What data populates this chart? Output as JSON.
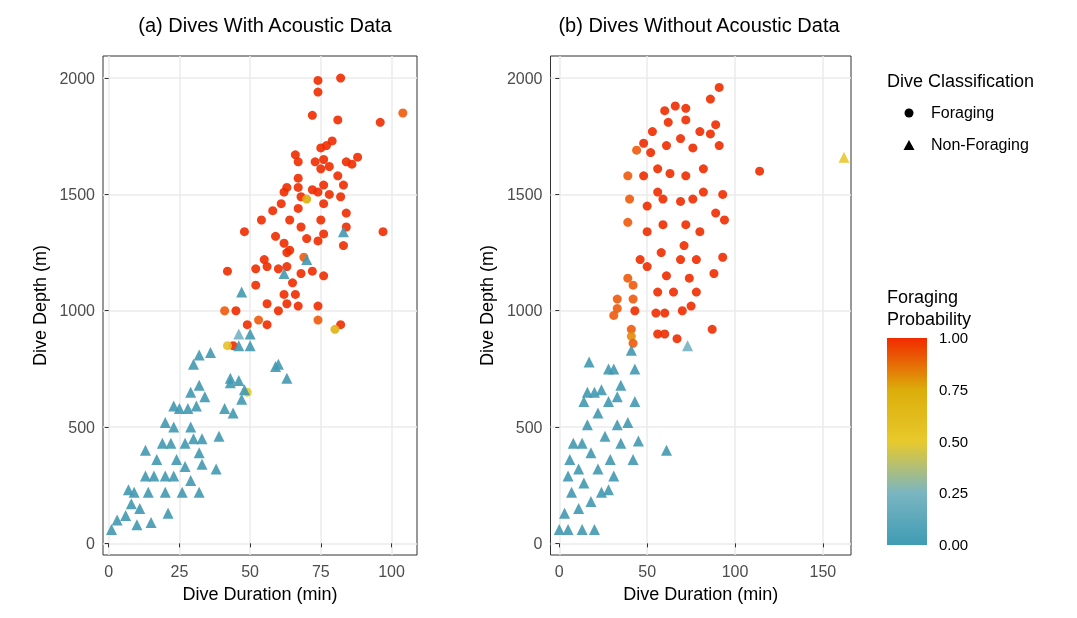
{
  "chart_data": [
    {
      "type": "scatter",
      "title": "(a) Dives With Acoustic Data",
      "xlabel": "Dive Duration (min)",
      "ylabel": "Dive Depth (m)",
      "xlim": [
        -2,
        109
      ],
      "ylim": [
        -50,
        2095
      ],
      "xticks": [
        0,
        25,
        50,
        75,
        100
      ],
      "yticks": [
        0,
        500,
        1000,
        1500,
        2000
      ],
      "grid": true,
      "series": [
        {
          "marker": "circle",
          "x": [
            74,
            82,
            74,
            72,
            81,
            96,
            104,
            79,
            75,
            77,
            88,
            66,
            67,
            73,
            76,
            84,
            86,
            75,
            78,
            81,
            67,
            63,
            67,
            72,
            76,
            83,
            82,
            62,
            68,
            74,
            78,
            61,
            76,
            58,
            67,
            64,
            54,
            68,
            75,
            84,
            84,
            48,
            97,
            76,
            70,
            59,
            62,
            74,
            83,
            64,
            63,
            55,
            69,
            52,
            56,
            42,
            60,
            63,
            72,
            76,
            68,
            52,
            65,
            66,
            62,
            56,
            63,
            67,
            74,
            60,
            41,
            45,
            53,
            49,
            56,
            74,
            82,
            80,
            44,
            42,
            49,
            70
          ],
          "values": [
            1990,
            2000,
            1940,
            1840,
            1820,
            1810,
            1850,
            1730,
            1700,
            1710,
            1660,
            1670,
            1640,
            1640,
            1650,
            1640,
            1630,
            1610,
            1620,
            1580,
            1570,
            1530,
            1530,
            1520,
            1540,
            1540,
            1490,
            1510,
            1490,
            1510,
            1500,
            1460,
            1460,
            1430,
            1440,
            1390,
            1390,
            1360,
            1390,
            1420,
            1360,
            1340,
            1340,
            1330,
            1310,
            1320,
            1290,
            1300,
            1280,
            1260,
            1250,
            1220,
            1230,
            1180,
            1190,
            1170,
            1180,
            1190,
            1170,
            1150,
            1160,
            1110,
            1120,
            1070,
            1070,
            1030,
            1030,
            1020,
            1020,
            1000,
            1000,
            1000,
            960,
            940,
            940,
            960,
            940,
            920,
            850,
            850,
            650,
            1480
          ],
          "colors": [
            "#f02c00",
            "#f02c00",
            "#f02c00",
            "#f02c00",
            "#f02c00",
            "#f02c00",
            "#ef5a0c",
            "#f02c00",
            "#f02c00",
            "#f02c00",
            "#f02c00",
            "#f02c00",
            "#f02c00",
            "#f02c00",
            "#f02c00",
            "#f02c00",
            "#f02c00",
            "#f02c00",
            "#f02c00",
            "#f02c00",
            "#f02c00",
            "#f02c00",
            "#f02c00",
            "#f02c00",
            "#f02c00",
            "#f02c00",
            "#f02c00",
            "#f02c00",
            "#f02c00",
            "#f02c00",
            "#f02c00",
            "#f02c00",
            "#f02c00",
            "#f02c00",
            "#f02c00",
            "#f02c00",
            "#f02c00",
            "#f02c00",
            "#f02c00",
            "#f02c00",
            "#f02c00",
            "#f02c00",
            "#f02c00",
            "#f02c00",
            "#f02c00",
            "#f02c00",
            "#f02c00",
            "#f02c00",
            "#f02c00",
            "#f02c00",
            "#f02c00",
            "#f02c00",
            "#ef5a0c",
            "#f02c00",
            "#f02c00",
            "#f02c00",
            "#f02c00",
            "#f02c00",
            "#f02c00",
            "#f02c00",
            "#f02c00",
            "#f02c00",
            "#f02c00",
            "#f02c00",
            "#f02c00",
            "#f02c00",
            "#f02c00",
            "#f02c00",
            "#f02c00",
            "#f02c00",
            "#ef5a0c",
            "#f02c00",
            "#ef5a0c",
            "#f02c00",
            "#f02c00",
            "#ef5a0c",
            "#f02c00",
            "#e0b214",
            "#f02c00",
            "#e6c22a",
            "#e8c92c",
            "#dcae0a"
          ]
        },
        {
          "marker": "triangle",
          "x": [
            83,
            70,
            62,
            47,
            46,
            50,
            46,
            50,
            36,
            32,
            30,
            60,
            59,
            63,
            43,
            46,
            43,
            48,
            47,
            41,
            44,
            32,
            29,
            34,
            31,
            25,
            39,
            33,
            33,
            38,
            32,
            29,
            20,
            13,
            7,
            3,
            1,
            14,
            20,
            24,
            27,
            22,
            17,
            11,
            8,
            10,
            15,
            21,
            26,
            29,
            32,
            28,
            23,
            19,
            16,
            9,
            6,
            13,
            20,
            23,
            27,
            30,
            23
          ],
          "values": [
            1340,
            1220,
            1160,
            1080,
            900,
            900,
            850,
            850,
            820,
            810,
            770,
            770,
            760,
            710,
            710,
            700,
            690,
            660,
            620,
            580,
            560,
            680,
            650,
            630,
            590,
            580,
            460,
            450,
            340,
            320,
            220,
            500,
            520,
            400,
            230,
            100,
            60,
            220,
            290,
            360,
            430,
            430,
            360,
            150,
            170,
            80,
            90,
            130,
            220,
            270,
            390,
            580,
            500,
            430,
            290,
            220,
            120,
            290,
            220,
            290,
            330,
            450,
            590
          ],
          "colors": [
            "#4199b1",
            "#4199b1",
            "#4199b1",
            "#4199b1",
            "#74b3c3",
            "#4199b1",
            "#4199b1",
            "#4199b1",
            "#4199b1",
            "#4199b1",
            "#4199b1",
            "#4199b1",
            "#4199b1",
            "#4199b1",
            "#4199b1",
            "#4199b1",
            "#4199b1",
            "#4199b1",
            "#4199b1",
            "#4199b1",
            "#4199b1",
            "#4199b1",
            "#4199b1",
            "#4199b1",
            "#4199b1",
            "#4199b1",
            "#4199b1",
            "#4199b1",
            "#4199b1",
            "#4199b1",
            "#4199b1",
            "#4199b1",
            "#4199b1",
            "#4199b1",
            "#4199b1",
            "#4199b1",
            "#4199b1",
            "#4199b1",
            "#4199b1",
            "#4199b1",
            "#4199b1",
            "#4199b1",
            "#4199b1",
            "#4199b1",
            "#4199b1",
            "#4199b1",
            "#4199b1",
            "#4199b1",
            "#4199b1",
            "#4199b1",
            "#4199b1",
            "#4199b1",
            "#4199b1",
            "#4199b1",
            "#4199b1",
            "#4199b1",
            "#4199b1",
            "#4199b1",
            "#4199b1",
            "#4199b1",
            "#4199b1",
            "#4199b1",
            "#4199b1"
          ]
        }
      ]
    },
    {
      "type": "scatter",
      "title": "(b) Dives Without Acoustic Data",
      "xlabel": "Dive Duration (min)",
      "ylabel": "Dive Depth (m)",
      "xlim": [
        -5,
        166
      ],
      "ylim": [
        -50,
        2095
      ],
      "xticks": [
        0,
        50,
        100,
        150
      ],
      "yticks": [
        0,
        500,
        1000,
        1500,
        2000
      ],
      "grid": true,
      "legend": "right",
      "legend_title": "Dive Classification",
      "clabel": "Foraging Probability",
      "clim": [
        0,
        1
      ],
      "cticks": [
        {
          "value": 0,
          "label": "0.00"
        },
        {
          "value": 0.25,
          "label": "0.25"
        },
        {
          "value": 0.5,
          "label": "0.50"
        },
        {
          "value": 0.75,
          "label": "0.75"
        },
        {
          "value": 1,
          "label": "1.00"
        }
      ],
      "series": [
        {
          "name": "Foraging",
          "marker": "circle",
          "x": [
            91,
            86,
            66,
            60,
            72,
            62,
            72,
            89,
            80,
            53,
            86,
            91,
            44,
            48,
            114,
            39,
            40,
            39,
            93,
            89,
            94,
            93,
            88,
            33,
            31,
            33,
            41,
            41,
            42,
            56,
            60,
            67,
            87,
            55,
            60,
            70,
            75,
            43,
            39,
            42,
            42,
            50,
            56,
            61,
            69,
            74,
            65,
            78,
            58,
            71,
            50,
            59,
            72,
            80,
            50,
            59,
            69,
            76,
            48,
            56,
            63,
            72,
            82,
            52,
            61,
            69,
            76,
            56,
            82,
            46,
            78
          ],
          "values": [
            1960,
            1910,
            1880,
            1860,
            1870,
            1810,
            1820,
            1800,
            1770,
            1770,
            1760,
            1710,
            1690,
            1720,
            1600,
            1580,
            1480,
            1380,
            1500,
            1420,
            1390,
            1230,
            1160,
            1050,
            980,
            1010,
            920,
            890,
            860,
            900,
            900,
            880,
            920,
            990,
            990,
            1000,
            1020,
            1000,
            1140,
            1110,
            1050,
            1190,
            1080,
            1150,
            1220,
            1140,
            1080,
            1080,
            1250,
            1280,
            1340,
            1370,
            1370,
            1340,
            1450,
            1480,
            1470,
            1480,
            1580,
            1610,
            1590,
            1580,
            1610,
            1680,
            1710,
            1740,
            1700,
            1510,
            1510,
            1220,
            1220
          ],
          "colors": [
            "#f02c00",
            "#f02c00",
            "#f02c00",
            "#f02c00",
            "#f02c00",
            "#f02c00",
            "#f02c00",
            "#f02c00",
            "#f02c00",
            "#f02c00",
            "#f02c00",
            "#f02c00",
            "#ef5a0c",
            "#f02c00",
            "#f02c00",
            "#ef5a0c",
            "#ef5a0c",
            "#ef5a0c",
            "#f02c00",
            "#f02c00",
            "#f02c00",
            "#f02c00",
            "#f02c00",
            "#ef5a0c",
            "#ef5a0c",
            "#ef5a0c",
            "#ef5a0c",
            "#e68a0a",
            "#ef5a0c",
            "#f02c00",
            "#f02c00",
            "#f02c00",
            "#f02c00",
            "#f02c00",
            "#f02c00",
            "#f02c00",
            "#f02c00",
            "#f02c00",
            "#ef5a0c",
            "#ef5a0c",
            "#ef5a0c",
            "#f02c00",
            "#f02c00",
            "#f02c00",
            "#f02c00",
            "#f02c00",
            "#f02c00",
            "#f02c00",
            "#f02c00",
            "#f02c00",
            "#f02c00",
            "#f02c00",
            "#f02c00",
            "#f02c00",
            "#f02c00",
            "#f02c00",
            "#f02c00",
            "#f02c00",
            "#f02c00",
            "#f02c00",
            "#f02c00",
            "#f02c00",
            "#f02c00",
            "#f02c00",
            "#f02c00",
            "#f02c00",
            "#f02c00",
            "#f02c00",
            "#f02c00",
            "#f02c00",
            "#f02c00"
          ]
        },
        {
          "name": "Non-Foraging",
          "marker": "triangle",
          "x": [
            162,
            73,
            41,
            43,
            17,
            28,
            31,
            35,
            43,
            45,
            61,
            42,
            39,
            8,
            6,
            14,
            16,
            24,
            33,
            0,
            5,
            13,
            20,
            3,
            11,
            18,
            28,
            31,
            7,
            14,
            22,
            29,
            11,
            18,
            26,
            33,
            16,
            22,
            28,
            20,
            13,
            35,
            24,
            5
          ],
          "values": [
            1660,
            850,
            830,
            750,
            780,
            750,
            750,
            680,
            610,
            440,
            400,
            360,
            520,
            430,
            360,
            610,
            650,
            660,
            630,
            60,
            60,
            60,
            60,
            130,
            150,
            180,
            230,
            290,
            220,
            260,
            320,
            360,
            320,
            390,
            460,
            510,
            510,
            560,
            610,
            650,
            430,
            430,
            220,
            290
          ],
          "colors": [
            "#e8c92c",
            "#74b3c3",
            "#4199b1",
            "#4199b1",
            "#4199b1",
            "#4199b1",
            "#4199b1",
            "#4199b1",
            "#4199b1",
            "#4199b1",
            "#4199b1",
            "#4199b1",
            "#4199b1",
            "#4199b1",
            "#4199b1",
            "#4199b1",
            "#4199b1",
            "#4199b1",
            "#4199b1",
            "#4199b1",
            "#4199b1",
            "#4199b1",
            "#4199b1",
            "#4199b1",
            "#4199b1",
            "#4199b1",
            "#4199b1",
            "#4199b1",
            "#4199b1",
            "#4199b1",
            "#4199b1",
            "#4199b1",
            "#4199b1",
            "#4199b1",
            "#4199b1",
            "#4199b1",
            "#4199b1",
            "#4199b1",
            "#4199b1",
            "#4199b1",
            "#4199b1",
            "#4199b1",
            "#4199b1",
            "#4199b1"
          ]
        }
      ]
    }
  ]
}
